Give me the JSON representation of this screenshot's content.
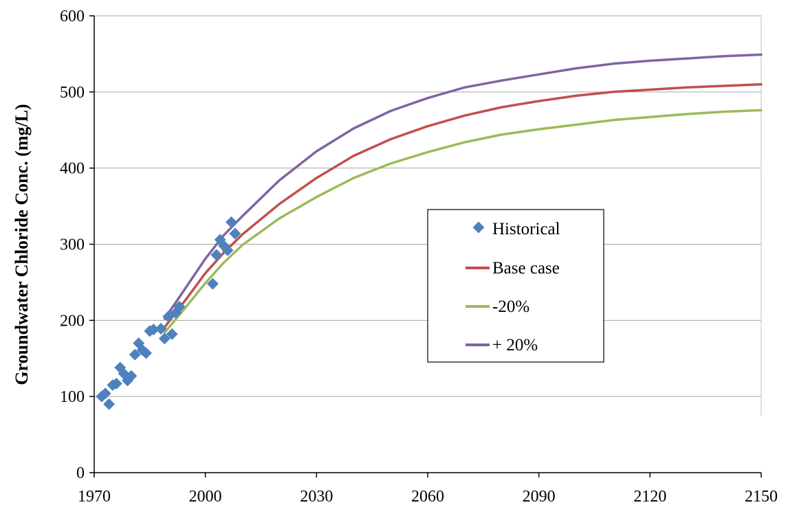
{
  "chart_data": {
    "type": "line",
    "title": "",
    "xlabel": "",
    "ylabel": "Groundwater Chloride Conc. (mg/L)",
    "xlim": [
      1970,
      2150
    ],
    "ylim": [
      0,
      600
    ],
    "x_ticks": [
      1970,
      2000,
      2030,
      2060,
      2090,
      2120,
      2150
    ],
    "y_ticks": [
      0,
      100,
      200,
      300,
      400,
      500,
      600
    ],
    "grid": "horizontal",
    "legend_position": "center-right",
    "colors": {
      "historical": "#4f81bd",
      "base": "#c0504d",
      "minus20": "#9bbb59",
      "plus20": "#8064a2",
      "grid": "#a6a6a6"
    },
    "scatter": {
      "name": "Historical",
      "points": [
        [
          1972,
          100
        ],
        [
          1973,
          104
        ],
        [
          1974,
          90
        ],
        [
          1975,
          115
        ],
        [
          1976,
          117
        ],
        [
          1977,
          138
        ],
        [
          1978,
          130
        ],
        [
          1979,
          121
        ],
        [
          1980,
          127
        ],
        [
          1981,
          155
        ],
        [
          1982,
          170
        ],
        [
          1983,
          161
        ],
        [
          1984,
          157
        ],
        [
          1985,
          186
        ],
        [
          1986,
          188
        ],
        [
          1988,
          189
        ],
        [
          1989,
          176
        ],
        [
          1990,
          205
        ],
        [
          1991,
          182
        ],
        [
          1992,
          210
        ],
        [
          1993,
          218
        ],
        [
          2002,
          248
        ],
        [
          2003,
          286
        ],
        [
          2004,
          306
        ],
        [
          2005,
          298
        ],
        [
          2006,
          292
        ],
        [
          2007,
          329
        ],
        [
          2008,
          314
        ]
      ]
    },
    "series": [
      {
        "name": "Base case",
        "x": [
          1989,
          1995,
          2000,
          2005,
          2010,
          2020,
          2030,
          2040,
          2050,
          2060,
          2070,
          2080,
          2090,
          2100,
          2110,
          2120,
          2130,
          2140,
          2150
        ],
        "values": [
          191,
          229,
          262,
          289,
          313,
          353,
          387,
          416,
          438,
          455,
          469,
          480,
          488,
          495,
          500,
          503,
          506,
          508,
          510
        ]
      },
      {
        "name": "-20%",
        "x": [
          1989,
          1995,
          2000,
          2005,
          2010,
          2020,
          2030,
          2040,
          2050,
          2060,
          2070,
          2080,
          2090,
          2100,
          2110,
          2120,
          2130,
          2140,
          2150
        ],
        "values": [
          184,
          219,
          249,
          276,
          299,
          334,
          362,
          387,
          406,
          421,
          434,
          444,
          451,
          457,
          463,
          467,
          471,
          474,
          476
        ]
      },
      {
        "name": "+ 20%",
        "x": [
          1989,
          1995,
          2000,
          2005,
          2010,
          2020,
          2030,
          2040,
          2050,
          2060,
          2070,
          2080,
          2090,
          2100,
          2110,
          2120,
          2130,
          2140,
          2150
        ],
        "values": [
          202,
          245,
          281,
          312,
          337,
          384,
          422,
          452,
          475,
          492,
          506,
          515,
          523,
          531,
          537,
          541,
          544,
          547,
          549
        ]
      }
    ]
  }
}
